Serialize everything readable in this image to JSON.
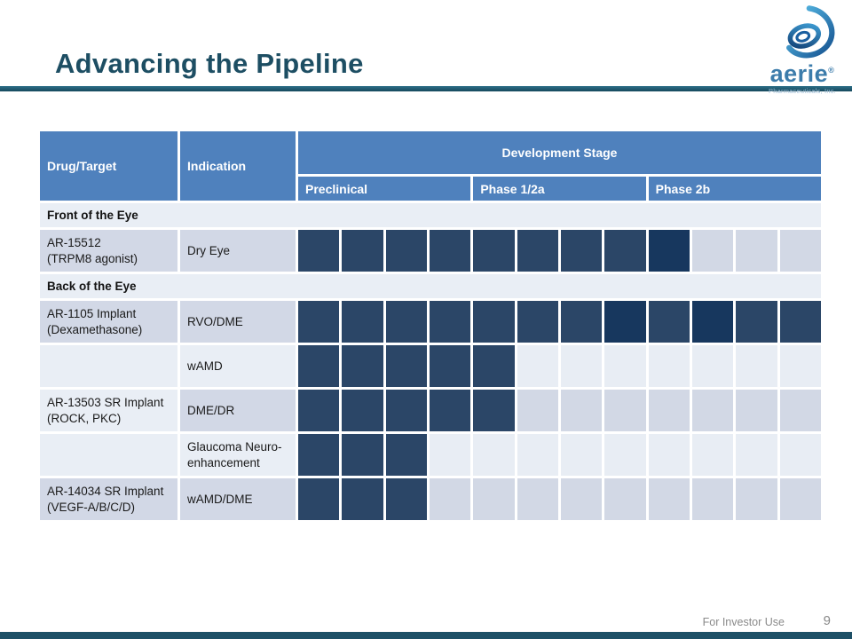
{
  "slide": {
    "title": "Advancing the Pipeline",
    "footer_label": "For Investor Use",
    "page_number": "9"
  },
  "logo": {
    "name": "aerie",
    "registered_mark": "®",
    "tagline": "Pharmaceuticals, Inc."
  },
  "colors": {
    "header_blue": "#4f81bd",
    "square_filled": "#2b4667",
    "square_filled_deep": "#17375e",
    "row_lavender": "#d2d8e6",
    "row_light": "#e9eef5",
    "title_teal": "#1d4e63",
    "accent_bar_teal": "#1d5066",
    "footer_gray": "#8a8a8a"
  },
  "table": {
    "header": {
      "drug": "Drug/Target",
      "indication": "Indication",
      "stage": "Development Stage",
      "phases": [
        "Preclinical",
        "Phase 1/2a",
        "Phase 2b"
      ]
    },
    "squares_per_phase": 4,
    "rows": [
      {
        "type": "section",
        "label": "Front of the Eye"
      },
      {
        "type": "drug",
        "drug_line1": "AR-15512",
        "drug_line2": "(TRPM8 agonist)",
        "indication": "Dry Eye",
        "drug_tone": "lavender",
        "tone": "lavender",
        "cells": [
          "f",
          "f",
          "f",
          "f",
          "f",
          "f",
          "f",
          "f",
          "d",
          "e",
          "e",
          "e"
        ]
      },
      {
        "type": "section",
        "label": "Back of the Eye"
      },
      {
        "type": "drug",
        "drug_line1": "AR-1105 Implant",
        "drug_line2": "(Dexamethasone)",
        "indication": "RVO/DME",
        "drug_tone": "lavender",
        "tone": "lavender",
        "cells": [
          "f",
          "f",
          "f",
          "f",
          "f",
          "f",
          "f",
          "d",
          "f",
          "d",
          "f",
          "f"
        ]
      },
      {
        "type": "drug",
        "drug_line1": "",
        "drug_line2": "",
        "indication": "wAMD",
        "drug_tone": "light",
        "tone": "light",
        "cells": [
          "f",
          "f",
          "f",
          "f",
          "f",
          "e",
          "e",
          "e",
          "e",
          "e",
          "e",
          "e"
        ]
      },
      {
        "type": "drug",
        "drug_line1": "AR-13503 SR Implant",
        "drug_line2": "(ROCK, PKC)",
        "indication": "DME/DR",
        "drug_tone": "light",
        "tone": "lavender",
        "cells": [
          "f",
          "f",
          "f",
          "f",
          "f",
          "e",
          "e",
          "e",
          "e",
          "e",
          "e",
          "e"
        ]
      },
      {
        "type": "drug",
        "drug_line1": "",
        "drug_line2": "",
        "indication": "Glaucoma Neuro-enhancement",
        "drug_tone": "light",
        "tone": "light",
        "cells": [
          "f",
          "f",
          "f",
          "e",
          "e",
          "e",
          "e",
          "e",
          "e",
          "e",
          "e",
          "e"
        ]
      },
      {
        "type": "drug",
        "drug_line1": "AR-14034 SR Implant",
        "drug_line2": "(VEGF-A/B/C/D)",
        "indication": "wAMD/DME",
        "drug_tone": "lavender",
        "tone": "lavender",
        "cells": [
          "f",
          "f",
          "f",
          "e",
          "e",
          "e",
          "e",
          "e",
          "e",
          "e",
          "e",
          "e"
        ]
      }
    ]
  }
}
